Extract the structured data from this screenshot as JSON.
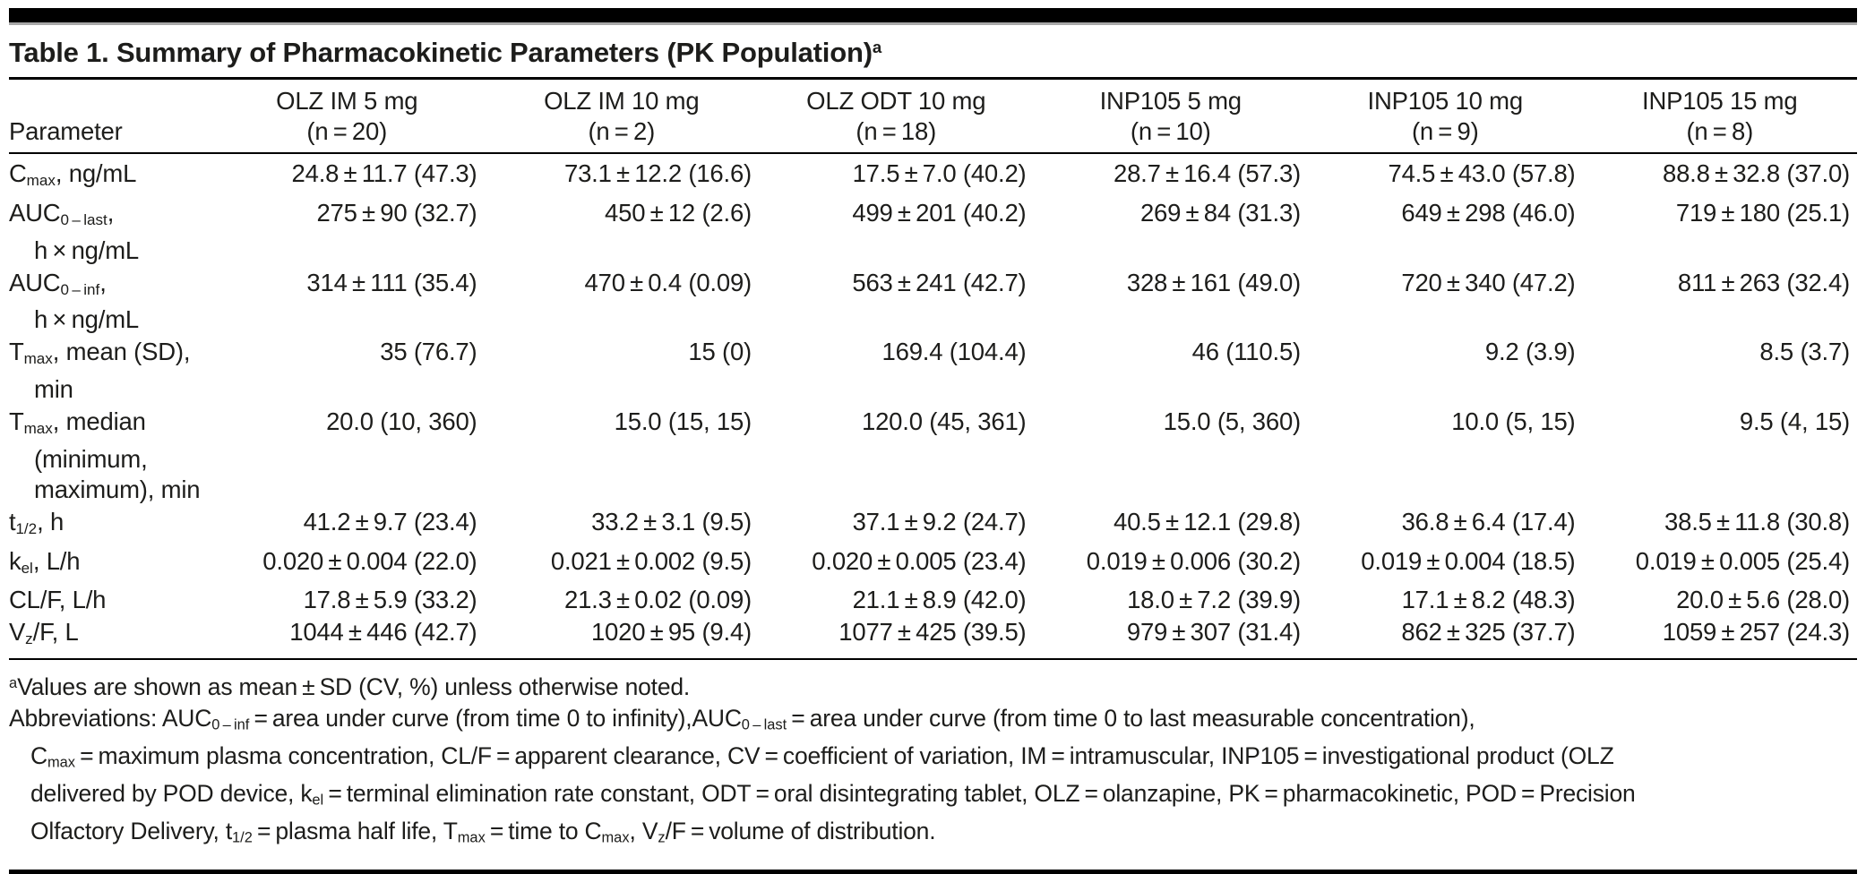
{
  "page": {
    "background": "#ffffff",
    "text_color": "#1d1d1b",
    "rule_color": "#000000"
  },
  "table": {
    "title": "Table 1. Summary of Pharmacokinetic Parameters (PK Population)^a^",
    "header": {
      "param_label": "Parameter",
      "columns": [
        {
          "label": "OLZ IM 5 mg",
          "n": "(n = 20)"
        },
        {
          "label": "OLZ IM 10 mg",
          "n": "(n = 2)"
        },
        {
          "label": "OLZ ODT 10 mg",
          "n": "(n = 18)"
        },
        {
          "label": "INP105 5 mg",
          "n": "(n = 10)"
        },
        {
          "label": "INP105 10 mg",
          "n": "(n = 9)"
        },
        {
          "label": "INP105 15 mg",
          "n": "(n = 8)"
        }
      ]
    },
    "rows": [
      {
        "param_lines": [
          "C~max~, ng/mL"
        ],
        "values": [
          "24.8 ± 11.7 (47.3)",
          "73.1 ± 12.2 (16.6)",
          "17.5 ± 7.0 (40.2)",
          "28.7 ± 16.4 (57.3)",
          "74.5 ± 43.0 (57.8)",
          "88.8 ± 32.8 (37.0)"
        ]
      },
      {
        "param_lines": [
          "AUC~0 – last~,",
          "h × ng/mL"
        ],
        "values": [
          "275 ± 90 (32.7)",
          "450 ± 12 (2.6)",
          "499 ± 201 (40.2)",
          "269 ± 84 (31.3)",
          "649 ± 298 (46.0)",
          "719 ± 180 (25.1)"
        ]
      },
      {
        "param_lines": [
          "AUC~0 – inf~,",
          "h × ng/mL"
        ],
        "values": [
          "314 ± 111 (35.4)",
          "470 ± 0.4 (0.09)",
          "563 ± 241 (42.7)",
          "328 ± 161 (49.0)",
          "720 ± 340 (47.2)",
          "811 ± 263 (32.4)"
        ]
      },
      {
        "param_lines": [
          "T~max~, mean (SD),",
          "min"
        ],
        "values": [
          "35 (76.7)",
          "15 (0)",
          "169.4 (104.4)",
          "46 (110.5)",
          "9.2 (3.9)",
          "8.5 (3.7)"
        ]
      },
      {
        "param_lines": [
          "T~max~, median",
          "(minimum,",
          "maximum), min"
        ],
        "values": [
          "20.0 (10, 360)",
          "15.0 (15, 15)",
          "120.0 (45, 361)",
          "15.0 (5, 360)",
          "10.0 (5, 15)",
          "9.5 (4, 15)"
        ]
      },
      {
        "param_lines": [
          "t~1/2~, h"
        ],
        "values": [
          "41.2 ± 9.7 (23.4)",
          "33.2 ± 3.1 (9.5)",
          "37.1 ± 9.2 (24.7)",
          "40.5 ± 12.1 (29.8)",
          "36.8 ± 6.4 (17.4)",
          "38.5 ± 11.8 (30.8)"
        ]
      },
      {
        "param_lines": [
          "k~el~, L/h"
        ],
        "values": [
          "0.020 ± 0.004 (22.0)",
          "0.021 ± 0.002 (9.5)",
          "0.020 ± 0.005 (23.4)",
          "0.019 ± 0.006 (30.2)",
          "0.019 ± 0.004 (18.5)",
          "0.019 ± 0.005 (25.4)"
        ]
      },
      {
        "param_lines": [
          "CL/F, L/h"
        ],
        "values": [
          "17.8 ± 5.9 (33.2)",
          "21.3 ± 0.02 (0.09)",
          "21.1 ± 8.9 (42.0)",
          "18.0 ± 7.2 (39.9)",
          "17.1 ± 8.2 (48.3)",
          "20.0 ± 5.6 (28.0)"
        ]
      },
      {
        "param_lines": [
          "V~z~/F, L"
        ],
        "values": [
          "1044 ± 446 (42.7)",
          "1020 ± 95 (9.4)",
          "1077 ± 425 (39.5)",
          "979 ± 307 (31.4)",
          "862 ± 325 (37.7)",
          "1059 ± 257 (24.3)"
        ]
      }
    ],
    "footnotes": [
      {
        "text": "^a^Values are shown as mean ± SD (CV, %) unless otherwise noted.",
        "indent": false
      },
      {
        "text": "Abbreviations: AUC~0 – inf~ = area under curve (from time 0 to infinity),AUC~0 – last~ = area under curve (from time 0 to last measurable concentration),",
        "indent": false
      },
      {
        "text": "C~max~ = maximum plasma concentration, CL/F = apparent clearance, CV = coefficient of variation, IM = intramuscular, INP105 = investigational product (OLZ",
        "indent": true
      },
      {
        "text": "delivered by POD device, k~el~ = terminal elimination rate constant, ODT = oral disintegrating tablet, OLZ = olanzapine, PK = pharmacokinetic, POD = Precision",
        "indent": true
      },
      {
        "text": "Olfactory Delivery, t~1/2~ = plasma half life, T~max~ = time to C~max~, V~z~/F = volume of distribution.",
        "indent": true
      }
    ]
  }
}
